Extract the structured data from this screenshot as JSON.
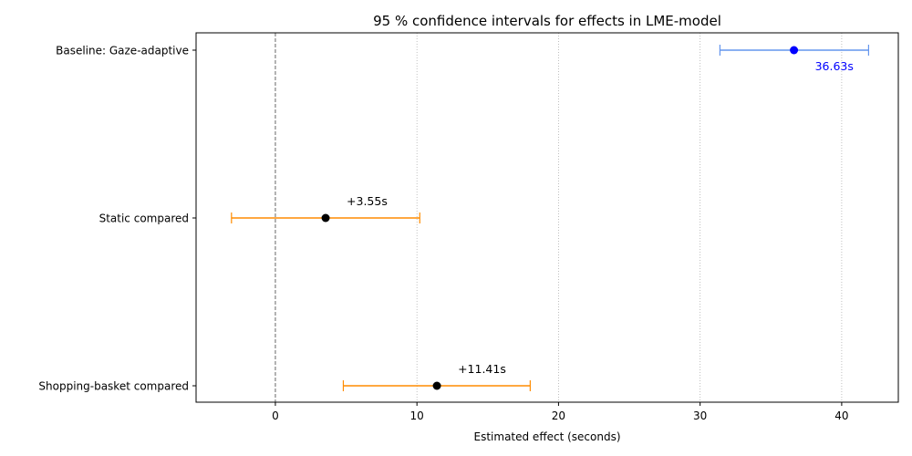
{
  "chart_data": {
    "type": "errorbar",
    "title": "95 % confidence intervals for effects in LME-model",
    "xlabel": "Estimated effect (seconds)",
    "ylabel": "",
    "xlim": [
      -5.6,
      44.0
    ],
    "x_ticks": [
      0,
      10,
      20,
      30,
      40
    ],
    "grid": "x-dotted",
    "reference_line_x": 0,
    "categories": [
      "Baseline: Gaze-adaptive",
      "Static compared",
      "Shopping-basket compared"
    ],
    "points": [
      {
        "category": "Baseline: Gaze-adaptive",
        "estimate": 36.63,
        "ci_low": 31.4,
        "ci_high": 41.9,
        "label": "36.63s",
        "color": "#0000ff",
        "bar_color": "#6495ed",
        "label_color": "#0000ff"
      },
      {
        "category": "Static compared",
        "estimate": 3.55,
        "ci_low": -3.1,
        "ci_high": 10.2,
        "label": "+3.55s",
        "color": "#000000",
        "bar_color": "#ff8c00",
        "label_color": "#000000"
      },
      {
        "category": "Shopping-basket compared",
        "estimate": 11.41,
        "ci_low": 4.8,
        "ci_high": 18.0,
        "label": "+11.41s",
        "color": "#000000",
        "bar_color": "#ff8c00",
        "label_color": "#000000"
      }
    ]
  }
}
